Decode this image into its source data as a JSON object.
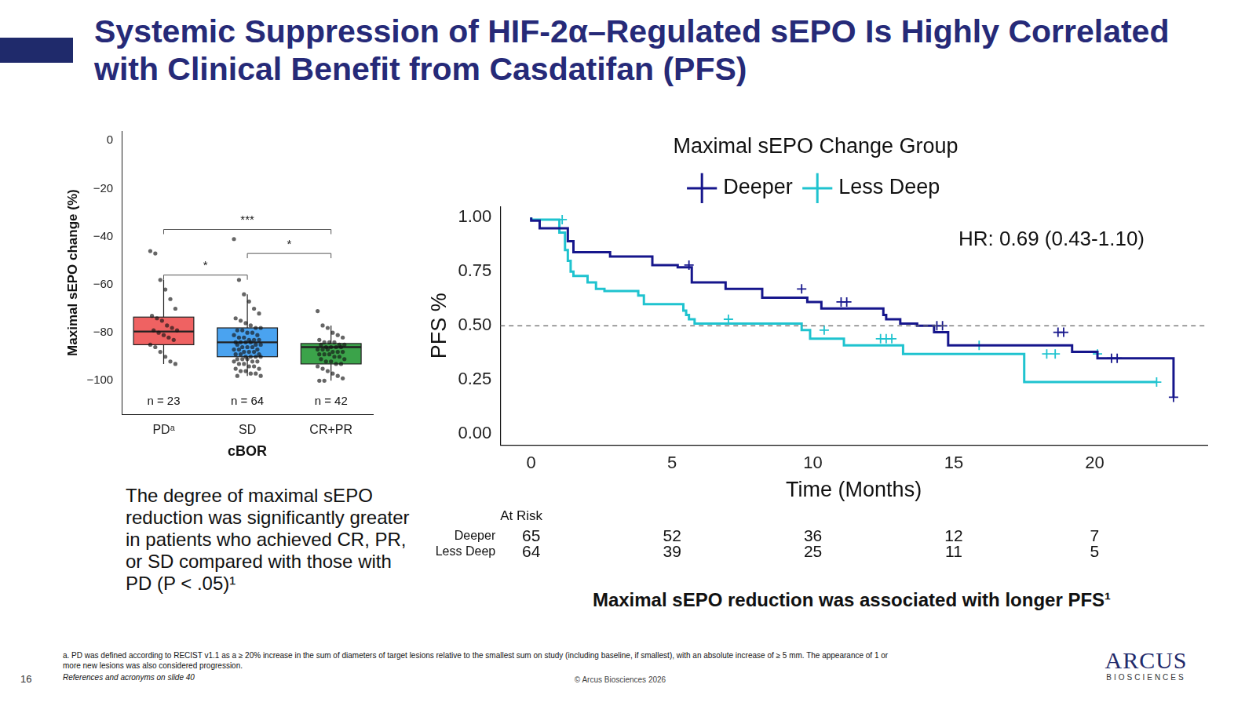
{
  "header": {
    "title": "Systemic Suppression of HIF-2α–Regulated sEPO Is Highly Correlated with Clinical Benefit from Casdatifan (PFS)"
  },
  "chart_data": [
    {
      "type": "box",
      "x_label": "cBOR",
      "y_label": "Maximal sEPO change (%)",
      "categories": [
        "PDᵃ",
        "SD",
        "CR+PR"
      ],
      "colors": [
        "#ef6262",
        "#4aa3f0",
        "#3ba34a"
      ],
      "n_labels": [
        "n = 23",
        "n = 64",
        "n = 42"
      ],
      "box": [
        {
          "whisker_low": -93,
          "q1": -85,
          "median": -79.5,
          "q3": -73.5,
          "whisker_high": -58
        },
        {
          "whisker_low": -98,
          "q1": -90,
          "median": -84,
          "q3": -78,
          "whisker_high": -64
        },
        {
          "whisker_low": -100,
          "q1": -93,
          "median": -86,
          "q3": -84.5,
          "whisker_high": -77
        }
      ],
      "points": [
        [
          -46,
          -47,
          -58,
          -62,
          -66,
          -70,
          -73,
          -74,
          -75,
          -77,
          -78,
          -79,
          -79,
          -80,
          -81,
          -82,
          -83,
          -85,
          -86,
          -88,
          -90,
          -92,
          -93
        ],
        [
          -41,
          -58,
          -64,
          -67,
          -70,
          -72,
          -74,
          -75,
          -76,
          -77,
          -78,
          -78,
          -79,
          -79,
          -80,
          -80,
          -81,
          -81,
          -82,
          -82,
          -83,
          -83,
          -83,
          -84,
          -84,
          -84,
          -84,
          -85,
          -85,
          -85,
          -86,
          -86,
          -86,
          -87,
          -87,
          -87,
          -88,
          -88,
          -88,
          -89,
          -89,
          -89,
          -90,
          -90,
          -90,
          -90,
          -91,
          -91,
          -91,
          -92,
          -92,
          -92,
          -93,
          -93,
          -94,
          -94,
          -95,
          -95,
          -96,
          -96,
          -97,
          -97,
          -98,
          -98
        ],
        [
          -71,
          -77,
          -78,
          -80,
          -81,
          -82,
          -83,
          -84,
          -84,
          -84,
          -85,
          -85,
          -85,
          -86,
          -86,
          -86,
          -86,
          -87,
          -87,
          -87,
          -88,
          -88,
          -88,
          -89,
          -89,
          -89,
          -90,
          -90,
          -91,
          -91,
          -92,
          -92,
          -93,
          -93,
          -94,
          -95,
          -96,
          -97,
          -98,
          -99,
          -100,
          -100
        ]
      ],
      "significance": [
        {
          "from": "PDᵃ",
          "to": "CR+PR",
          "y": -37,
          "label": "***"
        },
        {
          "from": "SD",
          "to": "CR+PR",
          "y": -47,
          "label": "*"
        },
        {
          "from": "PDᵃ",
          "to": "SD",
          "y": -56,
          "label": "*"
        }
      ],
      "xlim": [
        -0.5,
        2.5
      ],
      "ylim": [
        -114,
        4
      ],
      "yticks": [
        0,
        {
          "value": -20,
          "label": "−20"
        },
        {
          "value": -40,
          "label": "−40"
        },
        {
          "value": -60,
          "label": "−60"
        },
        {
          "value": -80,
          "label": "−80"
        },
        {
          "value": -100,
          "label": "−100"
        }
      ],
      "grid": false
    },
    {
      "type": "line",
      "legend_title": "Maximal sEPO Change Group",
      "legend": "top",
      "x_label": "Time (Months)",
      "y_label": "PFS %",
      "xlim": [
        -1.1,
        24
      ],
      "xticks": [
        0,
        5,
        10,
        15,
        20
      ],
      "ylim": [
        -0.05,
        1.05
      ],
      "yticks": [
        {
          "value": 0,
          "label": "0.00"
        },
        {
          "value": 0.25,
          "label": "0.25"
        },
        {
          "value": 0.5,
          "label": "0.50"
        },
        {
          "value": 0.75,
          "label": "0.75"
        },
        {
          "value": 1,
          "label": "1.00"
        }
      ],
      "grid": false,
      "line_style": "step",
      "series": [
        {
          "name": "Deeper",
          "color": "#16168c",
          "marker": "+",
          "x": [
            0,
            0.3,
            1.3,
            1.5,
            2.8,
            4.3,
            5.2,
            5.7,
            6.9,
            8.2,
            9.8,
            10.3,
            12.5,
            12.6,
            13.1,
            13.7,
            14.3,
            14.8,
            19.2,
            20.1,
            20.5,
            22.8,
            22.8
          ],
          "values": [
            1,
            0.985,
            0.95,
            0.89,
            0.84,
            0.82,
            0.78,
            0.77,
            0.7,
            0.67,
            0.63,
            0.61,
            0.58,
            0.55,
            0.53,
            0.51,
            0.5,
            0.47,
            0.41,
            0.38,
            0.35,
            0.35,
            0.17
          ],
          "censored": {
            "x": [
              5.6,
              9.6,
              11.0,
              11.2,
              14.4,
              14.6,
              18.7,
              18.9,
              20.6,
              20.8,
              22.8
            ],
            "values": [
              0.78,
              0.67,
              0.61,
              0.61,
              0.5,
              0.5,
              0.47,
              0.47,
              0.35,
              0.35,
              0.17
            ]
          }
        },
        {
          "name": "Less Deep",
          "color": "#1fc3cf",
          "marker": "+",
          "x": [
            0,
            1.0,
            1.2,
            1.3,
            1.4,
            1.5,
            2.0,
            2.3,
            2.6,
            3.8,
            4.0,
            5.4,
            5.5,
            5.6,
            5.8,
            9.6,
            9.9,
            11.1,
            13.2,
            17.5,
            21.5,
            22.2
          ],
          "values": [
            1,
            0.99,
            0.93,
            0.85,
            0.8,
            0.75,
            0.73,
            0.7,
            0.67,
            0.66,
            0.64,
            0.6,
            0.57,
            0.55,
            0.53,
            0.51,
            0.48,
            0.44,
            0.41,
            0.37,
            0.24,
            0.24
          ],
          "censored": {
            "x": [
              1.1,
              7.0,
              10.4,
              12.4,
              12.6,
              12.8,
              15.9,
              18.3,
              18.6,
              20.1,
              22.2
            ],
            "values": [
              0.99,
              0.53,
              0.48,
              0.44,
              0.44,
              0.44,
              0.41,
              0.37,
              0.37,
              0.37,
              0.24
            ]
          }
        }
      ],
      "reference_line": {
        "y": 0.5,
        "line_style": "dashed"
      },
      "annotations": [
        {
          "text": "HR: 0.69 (0.43-1.10)"
        }
      ],
      "at_risk": {
        "title": "At Risk",
        "times": [
          0,
          5,
          10,
          15,
          20
        ],
        "rows": [
          {
            "name": "Deeper",
            "values": [
              65,
              52,
              36,
              12,
              7
            ]
          },
          {
            "name": "Less Deep",
            "values": [
              64,
              39,
              25,
              11,
              5
            ]
          }
        ]
      }
    }
  ],
  "text": {
    "note": "The degree of maximal sEPO reduction was significantly greater in patients who achieved CR, PR, or SD compared with those with PD (P < .05)¹",
    "caption": "Maximal sEPO reduction was associated with longer PFS¹",
    "footnote": "a. PD was defined according to RECIST v1.1 as a ≥ 20% increase in the sum of diameters of target lesions relative to the smallest sum on study (including baseline, if smallest), with an absolute increase of ≥ 5 mm. The appearance of 1 or more new lesions was also considered progression.",
    "references": "References and acronyms on slide 40",
    "page_number": 16,
    "copyright": "© Arcus Biosciences 2026",
    "logo": "ARCUS",
    "logo_sub": "BIOSCIENCES"
  }
}
